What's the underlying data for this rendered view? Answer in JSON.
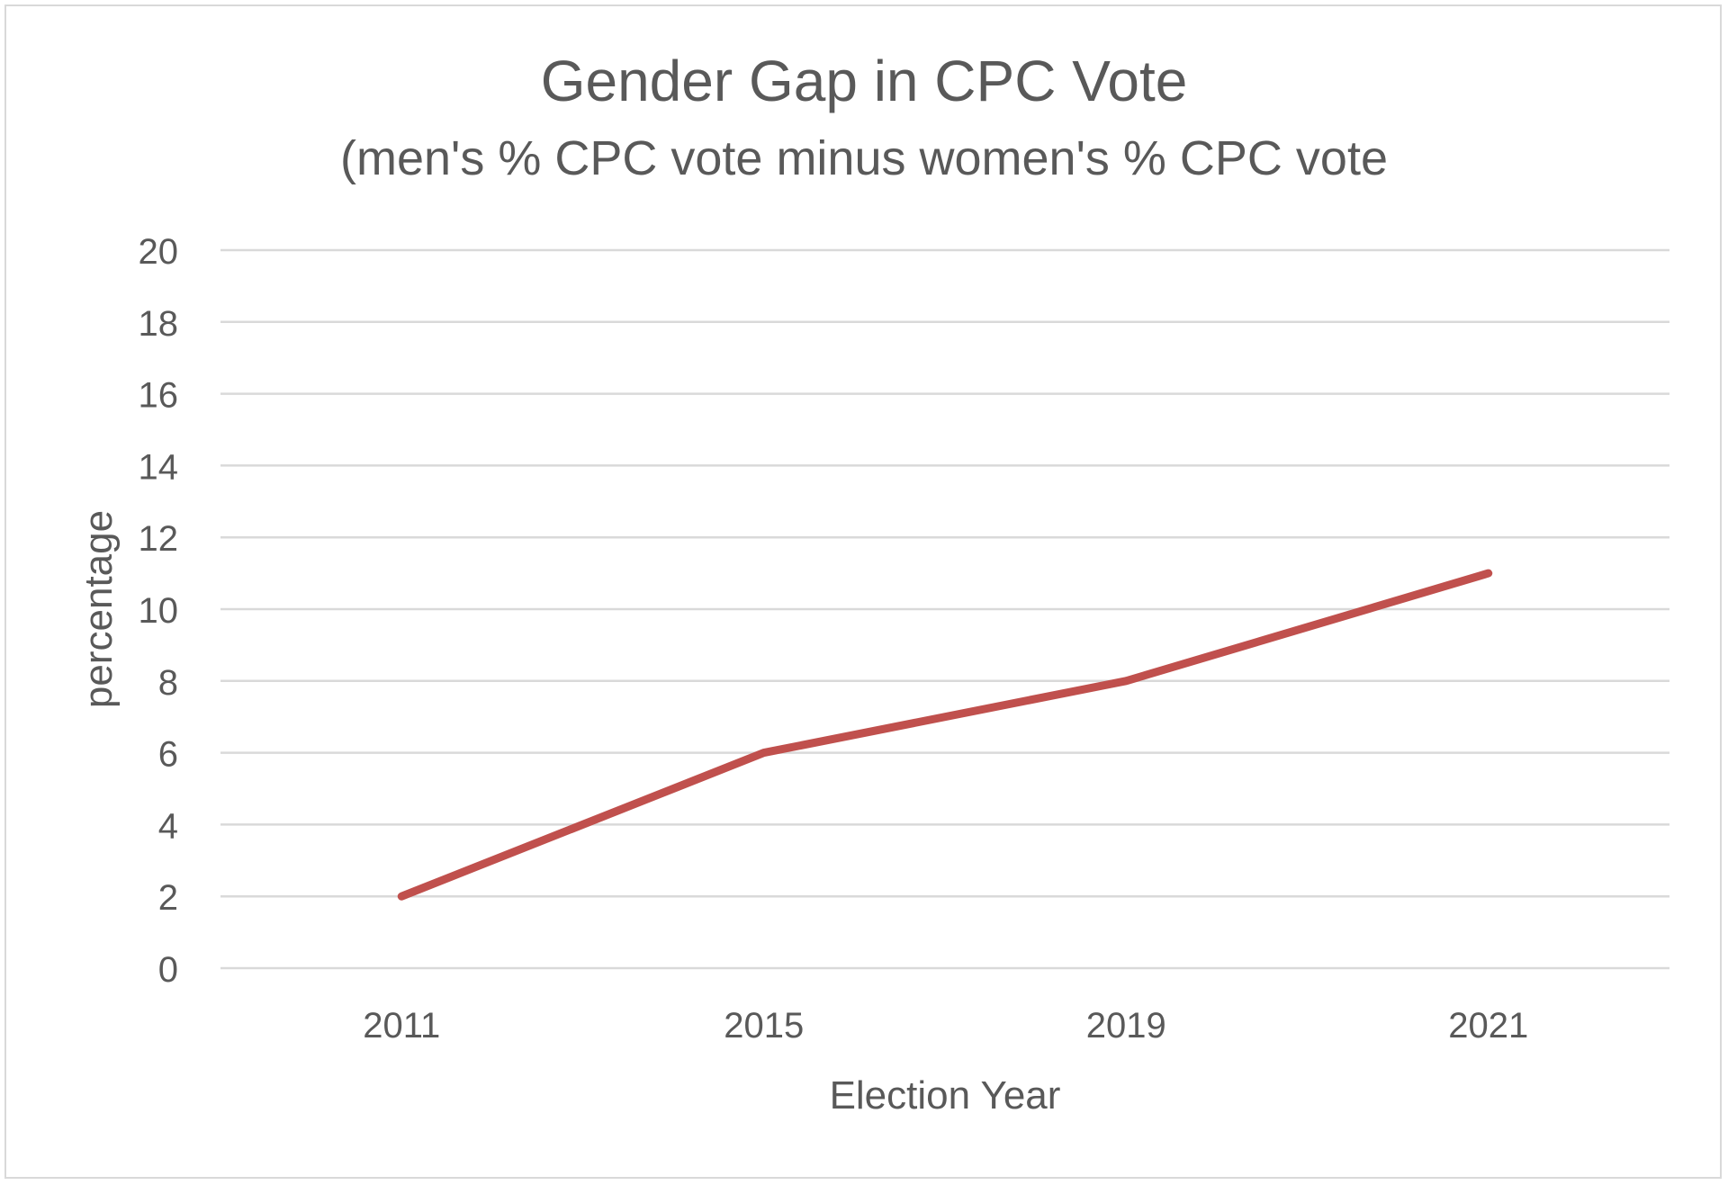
{
  "chart_data": {
    "type": "line",
    "title": "Gender Gap in CPC Vote",
    "subtitle": "(men's % CPC vote minus women's % CPC vote",
    "xlabel": "Election Year",
    "ylabel": "percentage",
    "categories": [
      "2011",
      "2015",
      "2019",
      "2021"
    ],
    "values": [
      2,
      6,
      8,
      11
    ],
    "ylim": [
      0,
      20
    ],
    "yticks": [
      0,
      2,
      4,
      6,
      8,
      10,
      12,
      14,
      16,
      18,
      20
    ],
    "grid": true,
    "legend": "none",
    "line_color": "#c0504d"
  }
}
